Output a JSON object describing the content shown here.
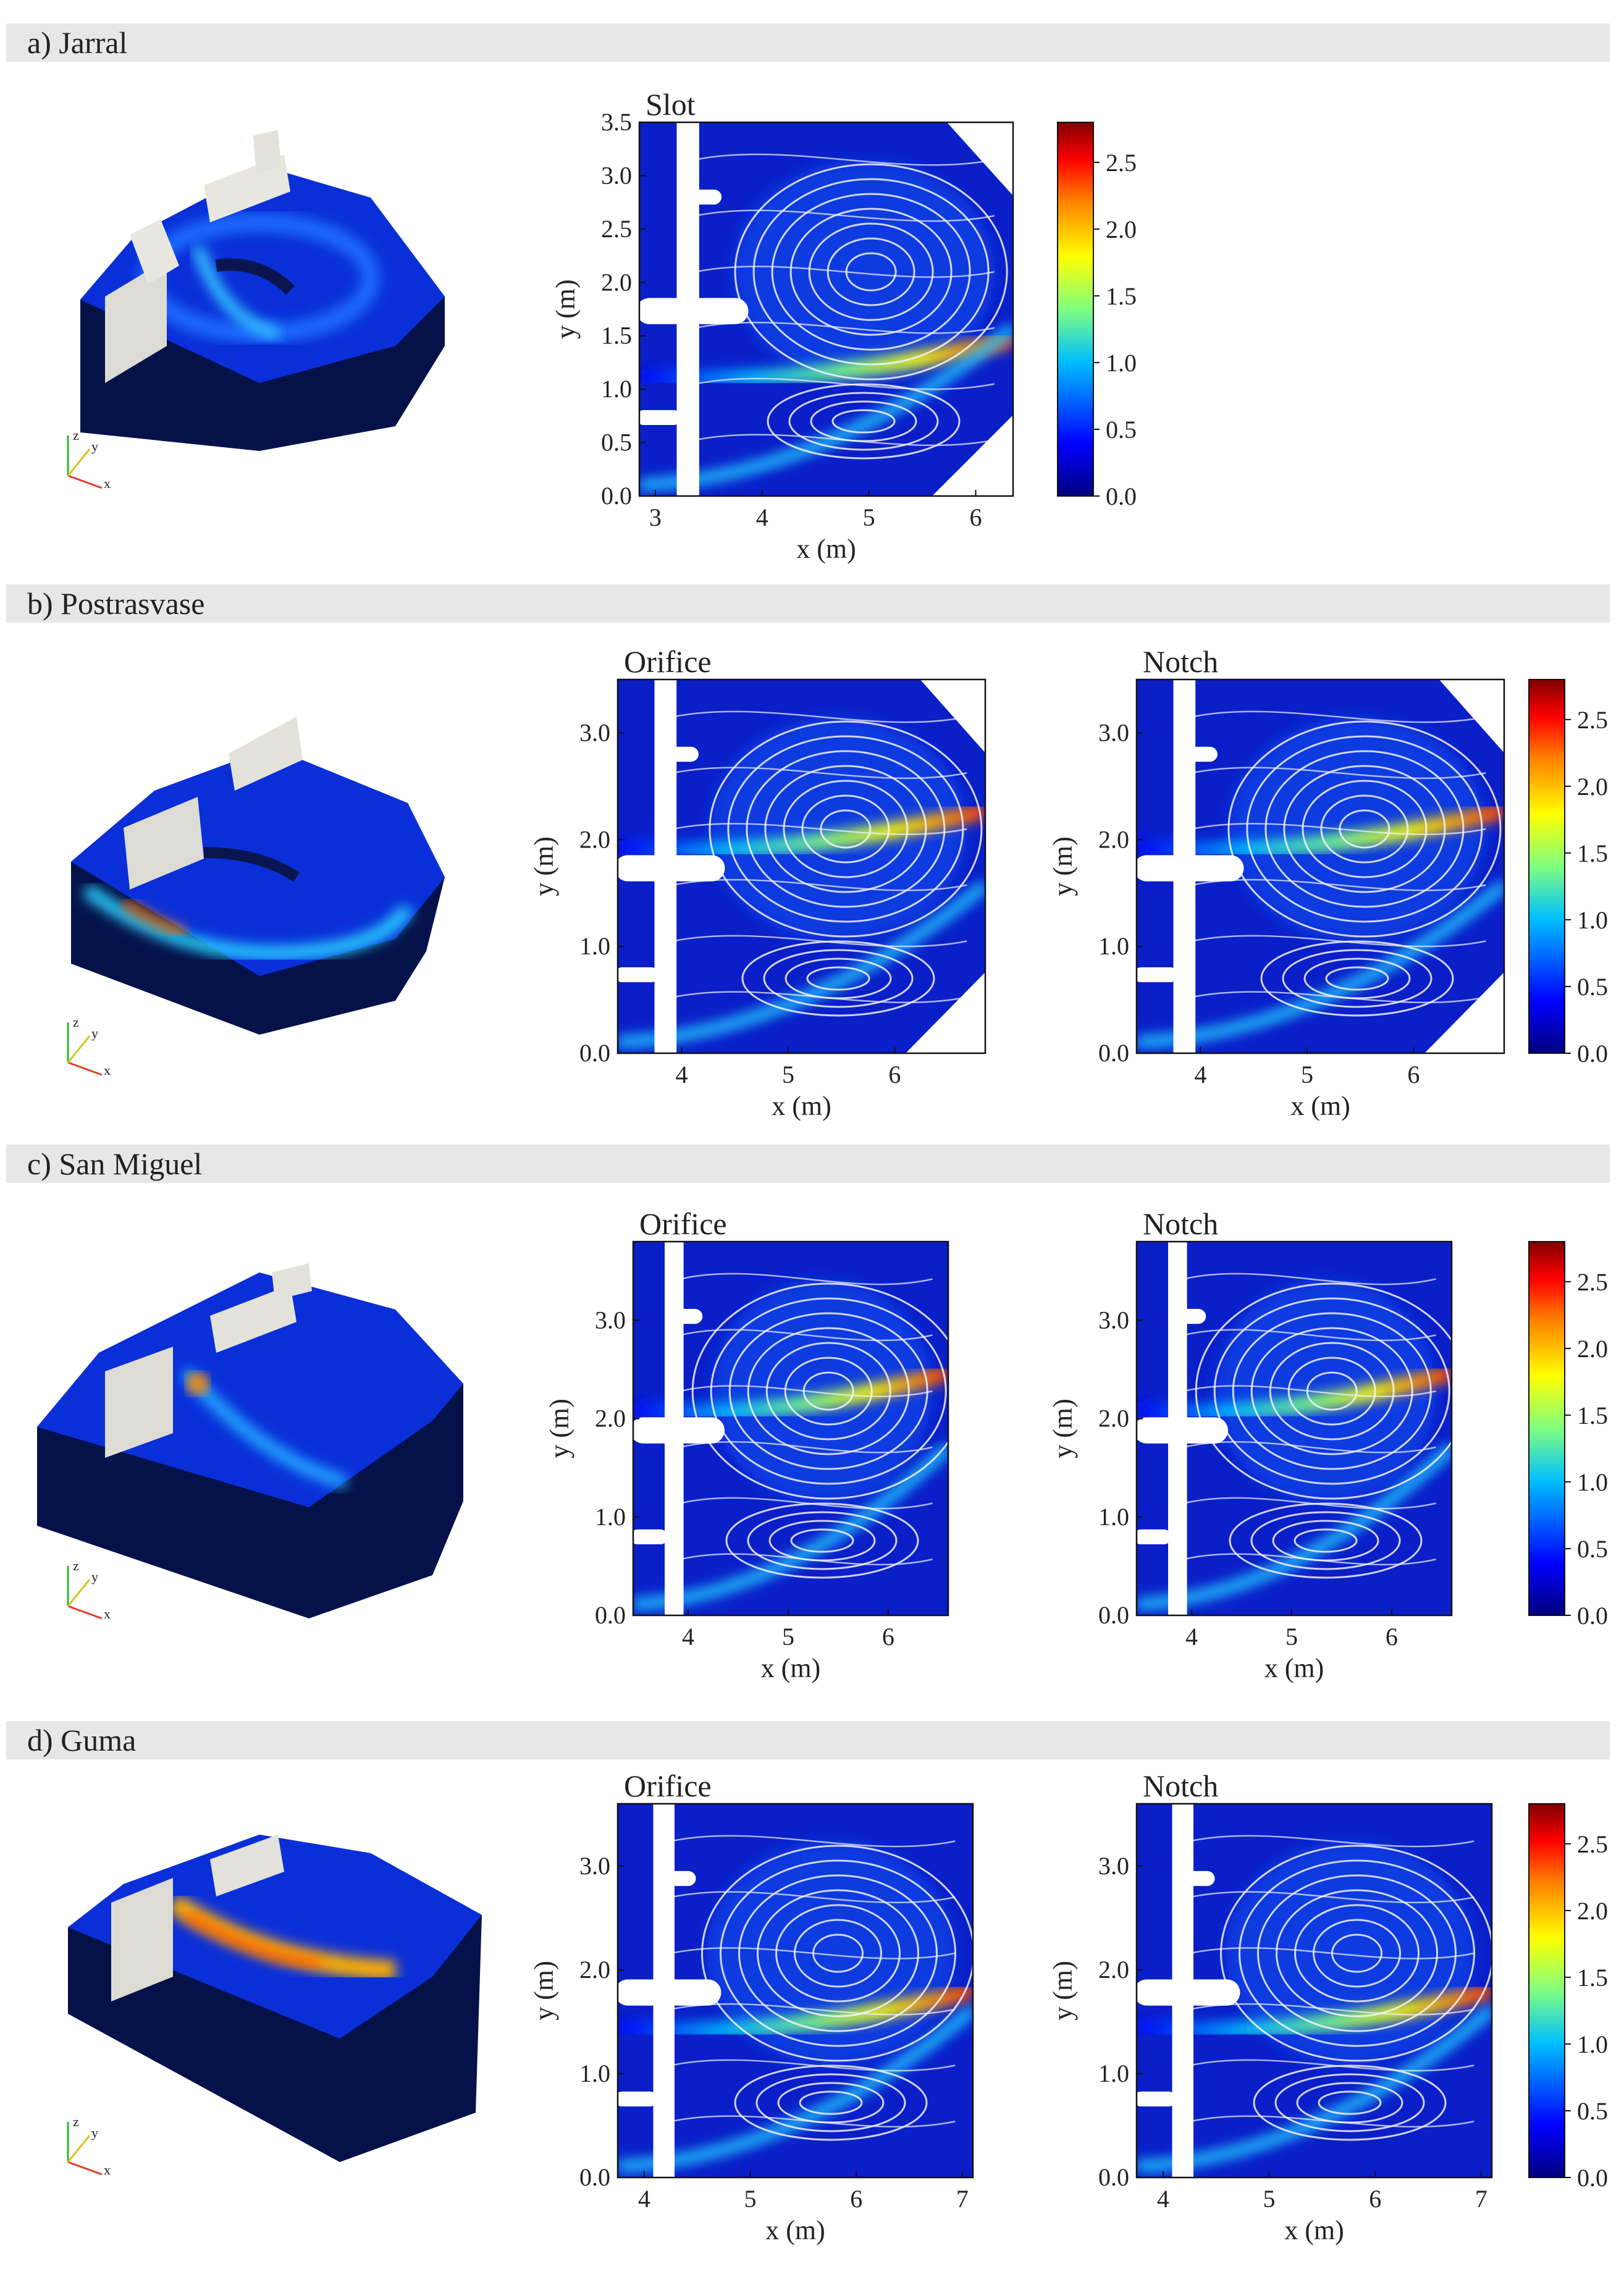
{
  "sections": [
    {
      "label": "a) Jarral"
    },
    {
      "label": "b) Postrasvase"
    },
    {
      "label": "c) San Miguel"
    },
    {
      "label": "d) Guma"
    }
  ],
  "axis_labels": {
    "x": "x (m)",
    "y": "y (m)"
  },
  "triad_labels": {
    "z": "z",
    "y": "y",
    "x": "x"
  },
  "colorbar": {
    "ticks": [
      "0.0",
      "0.5",
      "1.0",
      "1.5",
      "2.0",
      "2.5"
    ],
    "range": [
      0,
      2.8
    ],
    "colors": [
      "#00007f",
      "#0000ff",
      "#00bfff",
      "#80ff80",
      "#ffff00",
      "#ff8000",
      "#ff0000",
      "#800000"
    ]
  },
  "panels": [
    {
      "title": "Slot",
      "xticks": [
        "3",
        "4",
        "5",
        "6"
      ],
      "yticks": [
        "0.0",
        "0.5",
        "1.0",
        "1.5",
        "2.0",
        "2.5",
        "3.0",
        "3.5"
      ]
    },
    {
      "title": "Orifice",
      "xticks": [
        "4",
        "5",
        "6"
      ],
      "yticks": [
        "0.0",
        "1.0",
        "2.0",
        "3.0"
      ]
    },
    {
      "title": "Notch",
      "xticks": [
        "4",
        "5",
        "6"
      ],
      "yticks": [
        "0.0",
        "1.0",
        "2.0",
        "3.0"
      ]
    },
    {
      "title": "Orifice",
      "xticks": [
        "4",
        "5",
        "6"
      ],
      "yticks": [
        "0.0",
        "1.0",
        "2.0",
        "3.0"
      ]
    },
    {
      "title": "Notch",
      "xticks": [
        "4",
        "5",
        "6"
      ],
      "yticks": [
        "0.0",
        "1.0",
        "2.0",
        "3.0"
      ]
    },
    {
      "title": "Orifice",
      "xticks": [
        "4",
        "5",
        "6",
        "7"
      ],
      "yticks": [
        "0.0",
        "1.0",
        "2.0",
        "3.0"
      ]
    },
    {
      "title": "Notch",
      "xticks": [
        "4",
        "5",
        "6",
        "7"
      ],
      "yticks": [
        "0.0",
        "1.0",
        "2.0",
        "3.0"
      ]
    }
  ]
}
